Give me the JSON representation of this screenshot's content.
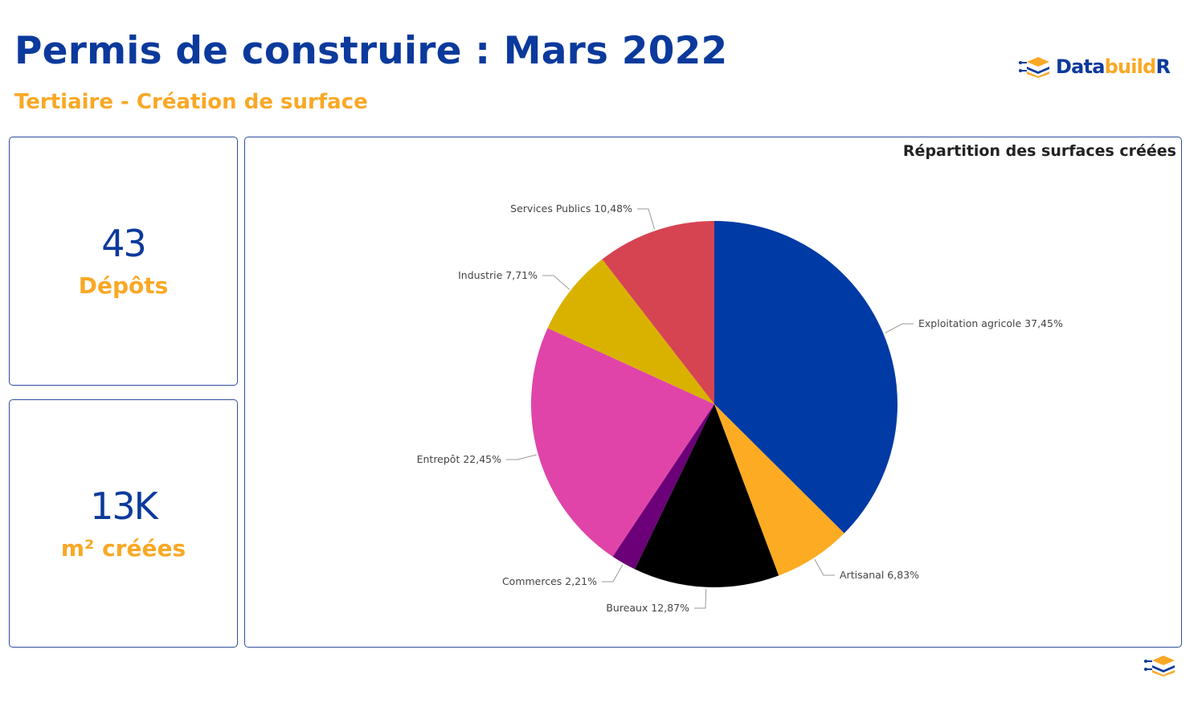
{
  "header": {
    "title": "Permis de construire : Mars 2022",
    "subtitle": "Tertiaire - Création de surface",
    "logo_text_a": "Data",
    "logo_text_b": "build",
    "logo_text_c": "R",
    "logo_icon": "stacked-layers-icon"
  },
  "kpis": [
    {
      "value": "43",
      "label": "Dépôts"
    },
    {
      "value": "13K",
      "label": "m² créées"
    }
  ],
  "colors": {
    "title": "#0b3a9c",
    "accent": "#f9a825",
    "border": "#2f4ea0"
  },
  "chart_data": {
    "type": "pie",
    "title": "Répartition des surfaces créées",
    "slices": [
      {
        "label": "Exploitation agricole 37,45%",
        "value": 37.45,
        "color": "#003aa5"
      },
      {
        "label": "Artisanal 6,83%",
        "value": 6.83,
        "color": "#fdab22"
      },
      {
        "label": "Bureaux 12,87%",
        "value": 12.87,
        "color": "#000000"
      },
      {
        "label": "Commerces 2,21%",
        "value": 2.21,
        "color": "#6b0078"
      },
      {
        "label": "Entrepôt 22,45%",
        "value": 22.45,
        "color": "#e044a8"
      },
      {
        "label": "Industrie 7,71%",
        "value": 7.71,
        "color": "#d9b200"
      },
      {
        "label": "Services Publics 10,48%",
        "value": 10.48,
        "color": "#d64452"
      }
    ],
    "start": "12 o'clock",
    "direction": "clockwise",
    "legend": "none"
  }
}
